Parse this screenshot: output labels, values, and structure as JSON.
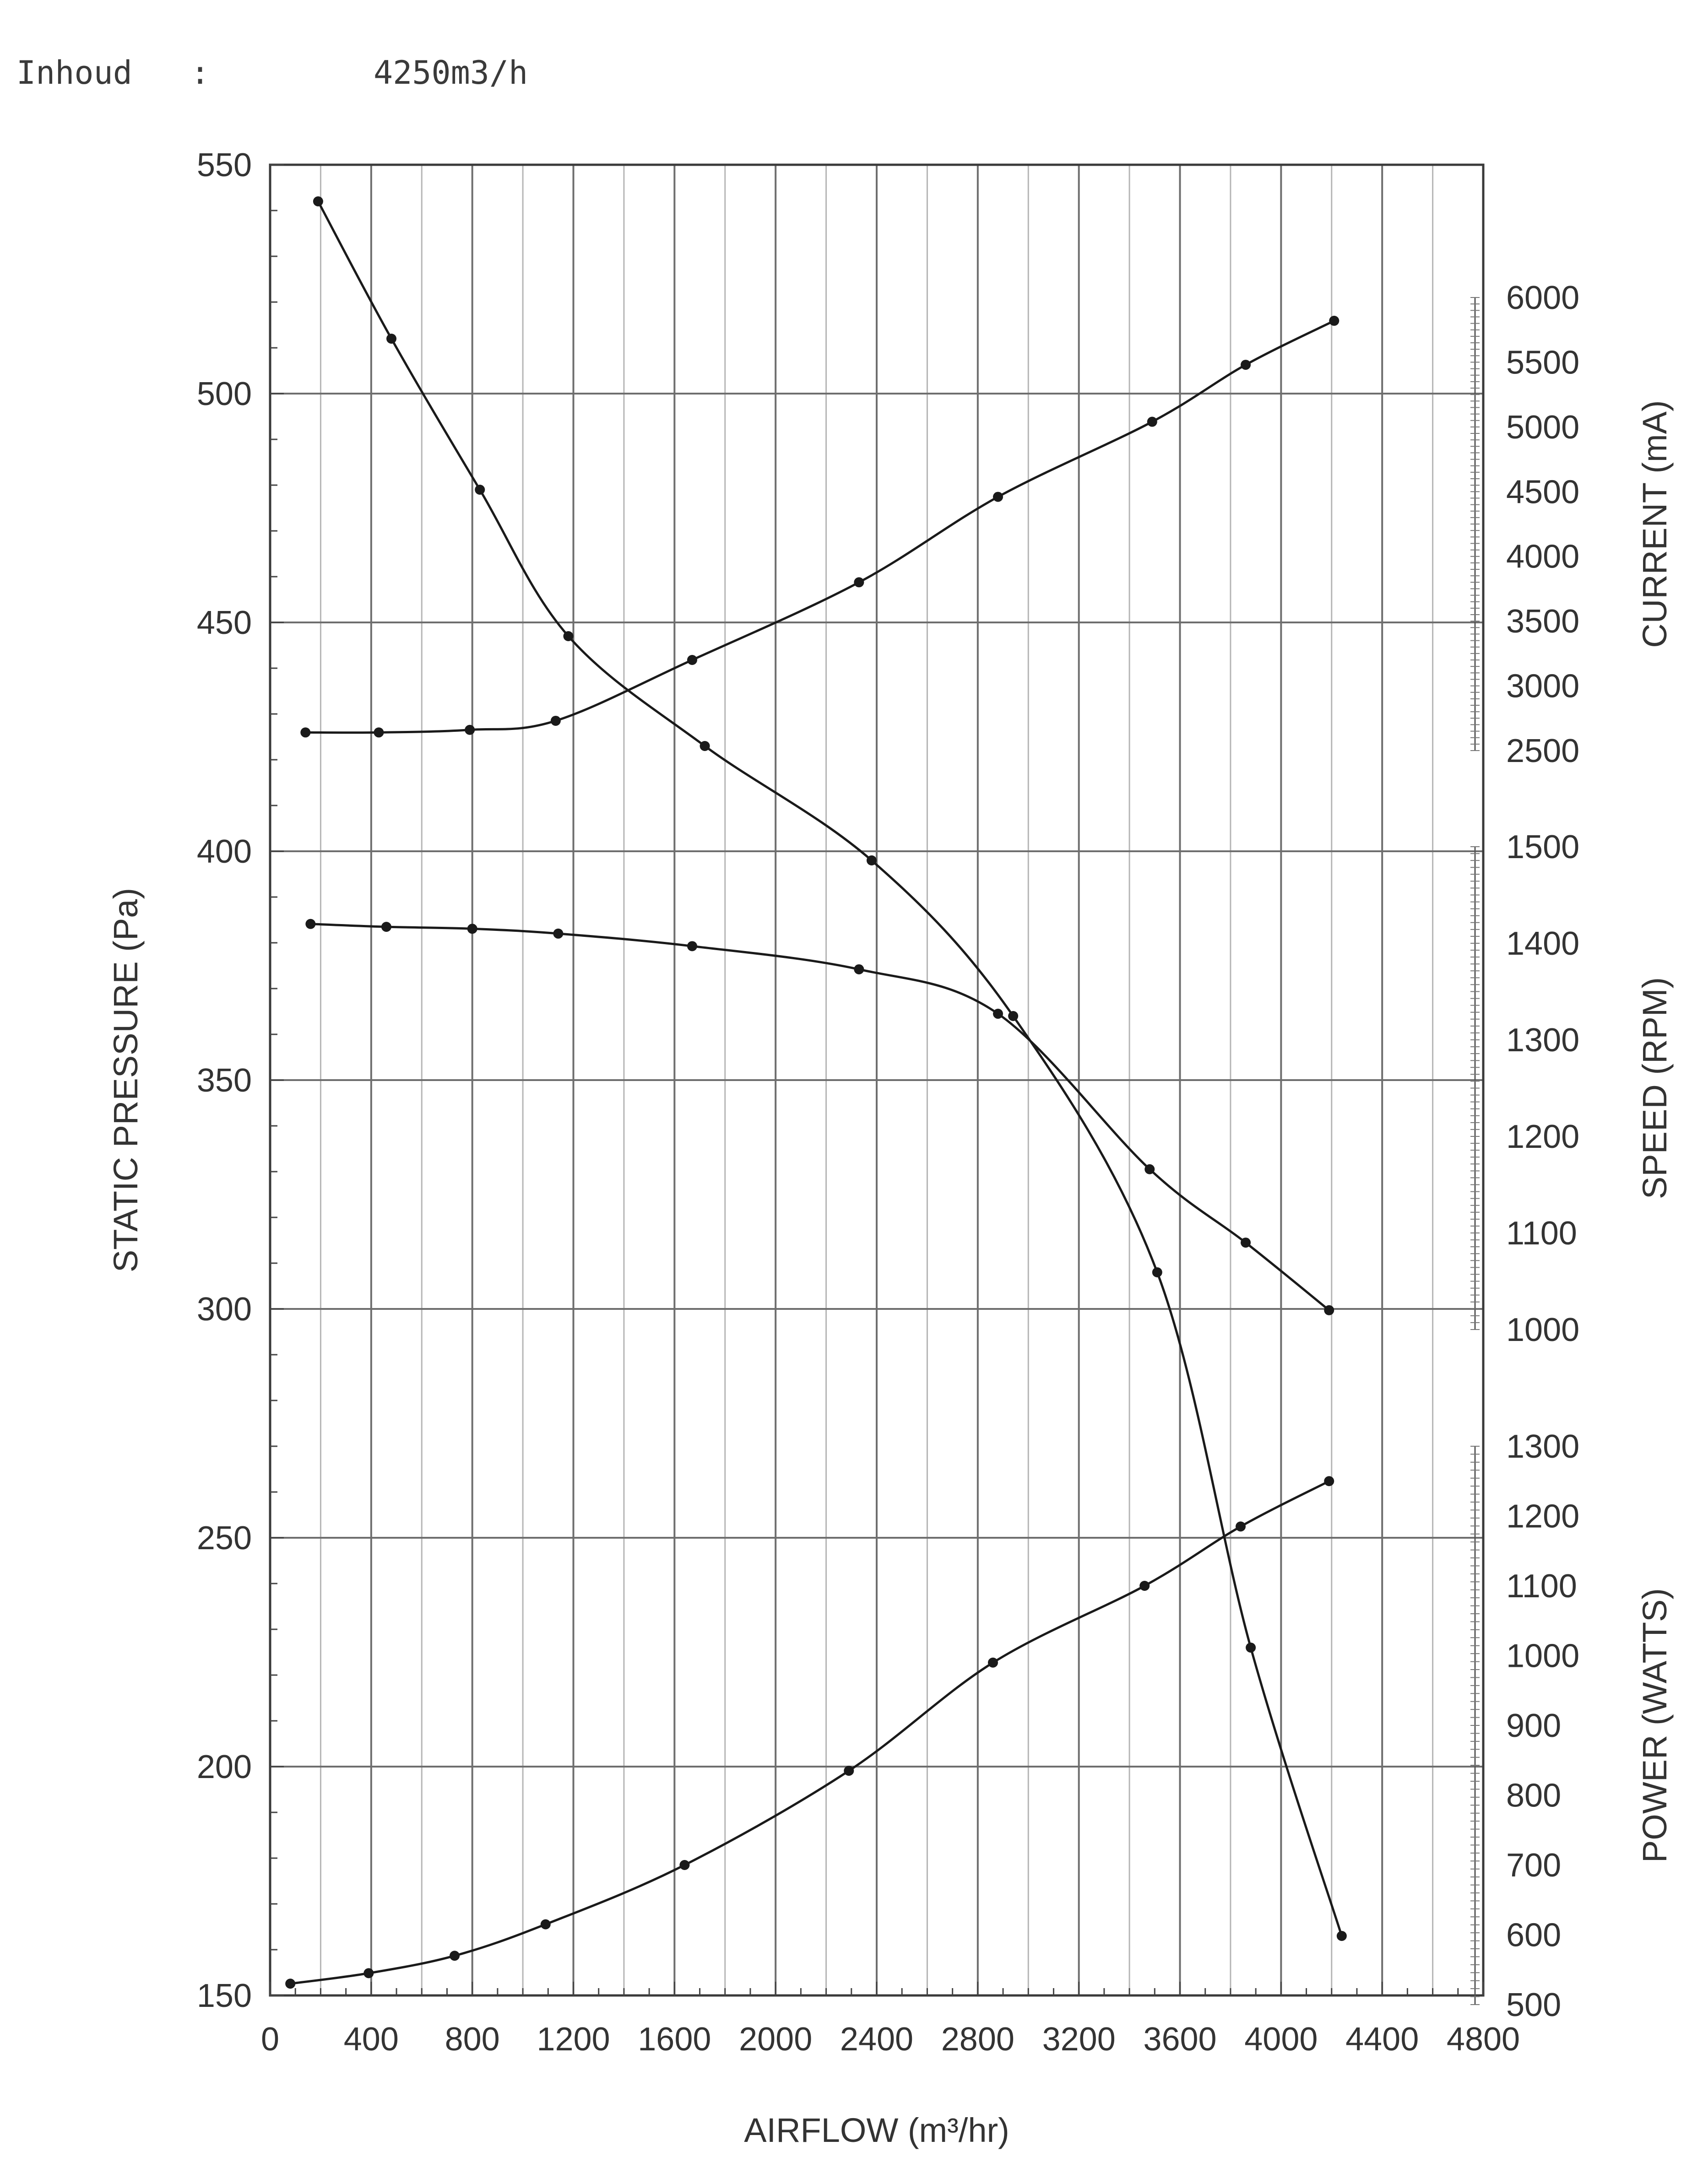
{
  "header": {
    "label": "Inhoud",
    "separator": ":",
    "value": "4250m3/h"
  },
  "chart_data": {
    "type": "line",
    "x_axis": {
      "label": "AIRFLOW (m³/hr)",
      "range": [
        0,
        4800
      ],
      "ticks": [
        "0",
        "400",
        "800",
        "1200",
        "1600",
        "2000",
        "2400",
        "2800",
        "3200",
        "3600",
        "4000",
        "4400",
        "4800"
      ]
    },
    "y_axis_left": {
      "label": "STATIC PRESSURE (Pa)",
      "range": [
        150,
        550
      ],
      "ticks": [
        "150",
        "200",
        "250",
        "300",
        "350",
        "400",
        "450",
        "500",
        "550"
      ]
    },
    "y_axes_right": [
      {
        "id": "current",
        "label": "CURRENT (mA)",
        "range": [
          2500,
          6000
        ],
        "ticks": [
          "2500",
          "3000",
          "3500",
          "4000",
          "4500",
          "5000",
          "5500",
          "6000"
        ]
      },
      {
        "id": "speed",
        "label": "SPEED (RPM)",
        "range": [
          1000,
          1500
        ],
        "ticks": [
          "1000",
          "1100",
          "1200",
          "1300",
          "1400",
          "1500"
        ]
      },
      {
        "id": "power",
        "label": "POWER (WATTS)",
        "range": [
          500,
          1300
        ],
        "ticks": [
          "500",
          "600",
          "700",
          "800",
          "900",
          "1000",
          "1100",
          "1200",
          "1300"
        ]
      }
    ],
    "grid": true,
    "line_color": "#1a1a1a",
    "series": [
      {
        "axis": "pressure",
        "points": [
          [
            190,
            542
          ],
          [
            480,
            512
          ],
          [
            830,
            479
          ],
          [
            1180,
            447
          ],
          [
            1720,
            423
          ],
          [
            2380,
            398
          ],
          [
            2940,
            364
          ],
          [
            3510,
            308
          ],
          [
            3880,
            226
          ],
          [
            4240,
            163
          ]
        ]
      },
      {
        "axis": "current",
        "points": [
          [
            140,
            2640
          ],
          [
            430,
            2640
          ],
          [
            790,
            2660
          ],
          [
            1130,
            2730
          ],
          [
            1670,
            3200
          ],
          [
            2330,
            3800
          ],
          [
            2880,
            4460
          ],
          [
            3490,
            5040
          ],
          [
            3860,
            5480
          ],
          [
            4210,
            5820
          ]
        ]
      },
      {
        "axis": "speed",
        "points": [
          [
            160,
            1420
          ],
          [
            460,
            1417
          ],
          [
            800,
            1415
          ],
          [
            1140,
            1410
          ],
          [
            1670,
            1397
          ],
          [
            2330,
            1373
          ],
          [
            2880,
            1327
          ],
          [
            3480,
            1166
          ],
          [
            3860,
            1090
          ],
          [
            4190,
            1020
          ]
        ]
      },
      {
        "axis": "power",
        "points": [
          [
            80,
            530
          ],
          [
            390,
            545
          ],
          [
            730,
            570
          ],
          [
            1090,
            615
          ],
          [
            1640,
            700
          ],
          [
            2290,
            835
          ],
          [
            2860,
            990
          ],
          [
            3460,
            1100
          ],
          [
            3840,
            1185
          ],
          [
            4190,
            1250
          ]
        ]
      }
    ]
  }
}
